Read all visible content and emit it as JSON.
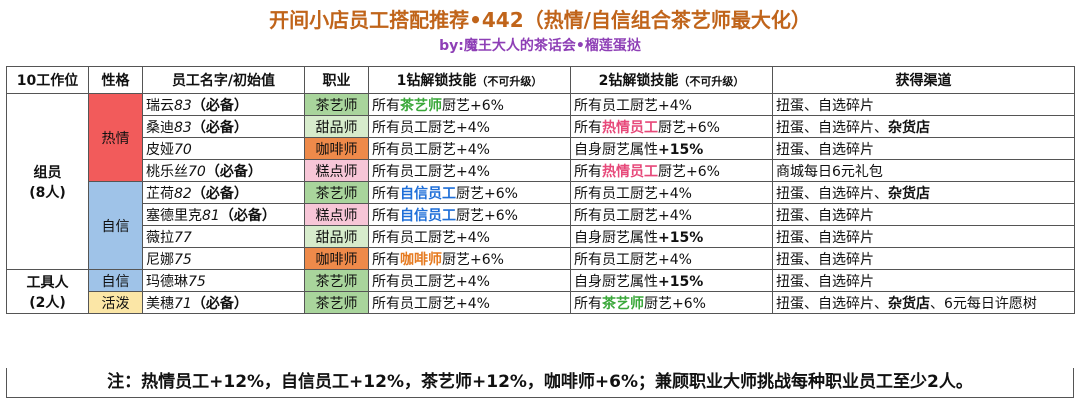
{
  "title": "开间小店员工搭配推荐•442（热情/自信组合茶艺师最大化）",
  "subtitle": "by:魔王大人的茶话会•榴莲蛋挞",
  "headers": [
    "10工作位",
    "性格",
    "员工名字/初始值",
    "职业",
    "1钻解锁技能",
    "（不可升级）",
    "2钻解锁技能",
    "（不可升级）",
    "获得渠道"
  ],
  "groups": [
    {
      "name": "组员",
      "count": "(8人)"
    },
    {
      "name": "工具人",
      "count": "(2人)"
    }
  ],
  "personalities": [
    "热情",
    "自信",
    "自信",
    "活泼"
  ],
  "rows": [
    {
      "name": "瑞云",
      "value": "83",
      "required": "（必备）",
      "job": "茶艺师",
      "skill1": {
        "pre": "所有",
        "hl": "茶艺师",
        "post": "厨艺+6%"
      },
      "skill2": {
        "pre": "所有员工厨艺+4%",
        "hl": "",
        "post": ""
      },
      "source": [
        {
          "t": "扭蛋、自选碎片",
          "b": false
        }
      ]
    },
    {
      "name": "桑迪",
      "value": "83",
      "required": "（必备）",
      "job": "甜品师",
      "skill1": {
        "pre": "所有员工厨艺+4%",
        "hl": "",
        "post": ""
      },
      "skill2": {
        "pre": "所有",
        "hl": "热情员工",
        "post": "厨艺+6%"
      },
      "source": [
        {
          "t": "扭蛋、自选碎片、",
          "b": false
        },
        {
          "t": "杂货店",
          "b": true
        }
      ]
    },
    {
      "name": "皮娅",
      "value": "70",
      "required": "",
      "job": "咖啡师",
      "skill1": {
        "pre": "所有员工厨艺+4%",
        "hl": "",
        "post": ""
      },
      "skill2": {
        "pre": "自身厨艺属性",
        "hl": "+15%",
        "post": ""
      },
      "source": [
        {
          "t": "扭蛋、自选碎片",
          "b": false
        }
      ]
    },
    {
      "name": "桃乐丝",
      "value": "70",
      "required": "（必备）",
      "job": "糕点师",
      "skill1": {
        "pre": "所有员工厨艺+4%",
        "hl": "",
        "post": ""
      },
      "skill2": {
        "pre": "所有",
        "hl": "热情员工",
        "post": "厨艺+6%"
      },
      "source": [
        {
          "t": "商城每日6元礼包",
          "b": false
        }
      ]
    },
    {
      "name": "芷荷",
      "value": "82",
      "required": "（必备）",
      "job": "茶艺师",
      "skill1": {
        "pre": "所有",
        "hl": "自信员工",
        "post": "厨艺+6%"
      },
      "skill2": {
        "pre": "所有员工厨艺+4%",
        "hl": "",
        "post": ""
      },
      "source": [
        {
          "t": "扭蛋、自选碎片、",
          "b": false
        },
        {
          "t": "杂货店",
          "b": true
        }
      ]
    },
    {
      "name": "塞德里克",
      "value": "81",
      "required": "（必备）",
      "job": "糕点师",
      "skill1": {
        "pre": "所有",
        "hl": "自信员工",
        "post": "厨艺+6%"
      },
      "skill2": {
        "pre": "所有员工厨艺+4%",
        "hl": "",
        "post": ""
      },
      "source": [
        {
          "t": "扭蛋、自选碎片",
          "b": false
        }
      ]
    },
    {
      "name": "薇拉",
      "value": "77",
      "required": "",
      "job": "甜品师",
      "skill1": {
        "pre": "所有员工厨艺+4%",
        "hl": "",
        "post": ""
      },
      "skill2": {
        "pre": "自身厨艺属性",
        "hl": "+15%",
        "post": ""
      },
      "source": [
        {
          "t": "扭蛋、自选碎片",
          "b": false
        }
      ]
    },
    {
      "name": "尼娜",
      "value": "75",
      "required": "",
      "job": "咖啡师",
      "skill1": {
        "pre": "所有",
        "hl": "咖啡师",
        "post": "厨艺+6%"
      },
      "skill2": {
        "pre": "所有员工厨艺+4%",
        "hl": "",
        "post": ""
      },
      "source": [
        {
          "t": "扭蛋、自选碎片",
          "b": false
        }
      ]
    },
    {
      "name": "玛德琳",
      "value": "75",
      "required": "",
      "job": "茶艺师",
      "skill1": {
        "pre": "所有员工厨艺+4%",
        "hl": "",
        "post": ""
      },
      "skill2": {
        "pre": "自身厨艺属性",
        "hl": "+15%",
        "post": ""
      },
      "source": [
        {
          "t": "扭蛋、自选碎片",
          "b": false
        }
      ]
    },
    {
      "name": "美穗",
      "value": "71",
      "required": "（必备）",
      "job": "茶艺师",
      "skill1": {
        "pre": "所有员工厨艺+4%",
        "hl": "",
        "post": ""
      },
      "skill2": {
        "pre": "所有",
        "hl": "茶艺师",
        "post": "厨艺+6%"
      },
      "source": [
        {
          "t": "扭蛋、自选碎片、",
          "b": false
        },
        {
          "t": "杂货店",
          "b": true
        },
        {
          "t": "、6元每日许愿树",
          "b": false
        }
      ]
    }
  ],
  "footer": "注：热情员工+12%，自信员工+12%，茶艺师+12%，咖啡师+6%；兼顾职业大师挑战每种职业员工至少2人。",
  "colors": {
    "title": "#c0641a",
    "subtitle": "#8e3fb6",
    "hot": "#f25b5b",
    "confident": "#9fc3e8",
    "lively": "#fbe6a6",
    "tea": "#a9d59c",
    "dessert": "#d7eccc",
    "coffee": "#ee8a4a",
    "pastry": "#f7c6d7"
  }
}
